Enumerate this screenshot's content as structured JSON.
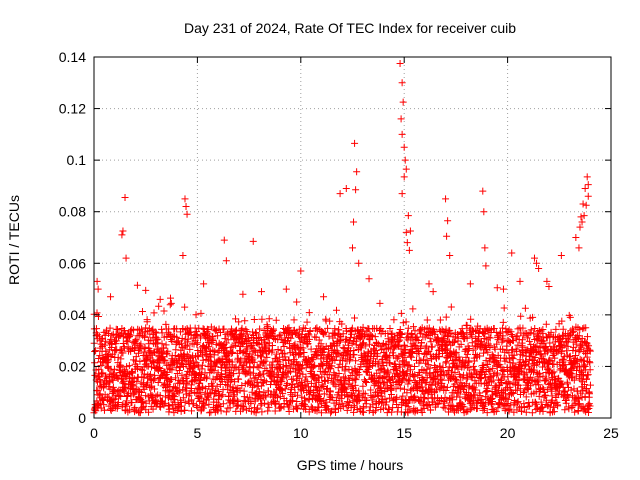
{
  "chart_data": {
    "type": "scatter",
    "title": "Day 231 of 2024, Rate Of TEC Index for receiver cuib",
    "xlabel": "GPS time / hours",
    "ylabel": "ROTI / TECUs",
    "xlim": [
      0,
      25
    ],
    "ylim": [
      0,
      0.14
    ],
    "xticks": [
      0,
      5,
      10,
      15,
      20,
      25
    ],
    "xtick_labels": [
      "0",
      "5",
      "10",
      "15",
      "20",
      "25"
    ],
    "yticks": [
      0,
      0.02,
      0.04,
      0.06,
      0.08,
      0.1,
      0.12,
      0.14
    ],
    "ytick_labels": [
      "0",
      "0.02",
      "0.04",
      "0.06",
      "0.08",
      "0.1",
      "0.12",
      "0.14"
    ],
    "grid": true,
    "marker": "+",
    "marker_color": "#ff0000",
    "band": {
      "x_start": 0,
      "x_end": 24,
      "x_step": 0.02,
      "y_min": 0.002,
      "y_max": 0.035
    },
    "series": [
      {
        "name": "ROTI",
        "x": [
          1.5,
          1.4,
          1.35,
          1.55,
          4.4,
          4.45,
          4.5,
          4.3,
          6.3,
          6.4,
          7.7,
          10.0,
          11.9,
          12.2,
          12.6,
          12.7,
          12.65,
          12.55,
          12.5,
          12.8,
          14.8,
          14.9,
          14.95,
          14.85,
          14.9,
          15.0,
          15.05,
          15.1,
          15.0,
          14.9,
          15.2,
          15.3,
          15.1,
          15.15,
          15.25,
          17.0,
          17.1,
          17.05,
          17.2,
          18.8,
          18.85,
          18.9,
          18.95,
          20.2,
          21.3,
          21.4,
          21.5,
          22.6,
          23.3,
          23.5,
          23.6,
          23.7,
          23.8,
          23.9,
          23.85,
          23.75,
          23.65,
          23.55,
          23.9,
          23.45,
          2.1,
          2.5,
          3.7,
          5.3,
          8.1,
          9.3,
          11.1,
          13.3,
          16.2,
          19.5,
          20.6,
          22.0,
          0.15,
          0.2,
          0.8,
          3.2,
          7.2,
          9.8,
          16.4,
          18.2,
          19.8,
          21.9
        ],
        "y": [
          0.0855,
          0.0725,
          0.071,
          0.062,
          0.085,
          0.082,
          0.079,
          0.063,
          0.069,
          0.061,
          0.0685,
          0.057,
          0.087,
          0.089,
          0.1065,
          0.0955,
          0.0885,
          0.076,
          0.066,
          0.06,
          0.1375,
          0.13,
          0.1225,
          0.116,
          0.11,
          0.105,
          0.1,
          0.0965,
          0.0935,
          0.087,
          0.0785,
          0.0725,
          0.072,
          0.068,
          0.065,
          0.085,
          0.0765,
          0.0705,
          0.063,
          0.088,
          0.08,
          0.066,
          0.059,
          0.064,
          0.062,
          0.06,
          0.058,
          0.063,
          0.07,
          0.074,
          0.076,
          0.0785,
          0.0825,
          0.0905,
          0.0935,
          0.089,
          0.083,
          0.078,
          0.086,
          0.066,
          0.0515,
          0.0495,
          0.0465,
          0.052,
          0.049,
          0.05,
          0.047,
          0.054,
          0.052,
          0.0505,
          0.053,
          0.051,
          0.053,
          0.05,
          0.047,
          0.046,
          0.048,
          0.045,
          0.049,
          0.052,
          0.05,
          0.053
        ]
      }
    ]
  }
}
